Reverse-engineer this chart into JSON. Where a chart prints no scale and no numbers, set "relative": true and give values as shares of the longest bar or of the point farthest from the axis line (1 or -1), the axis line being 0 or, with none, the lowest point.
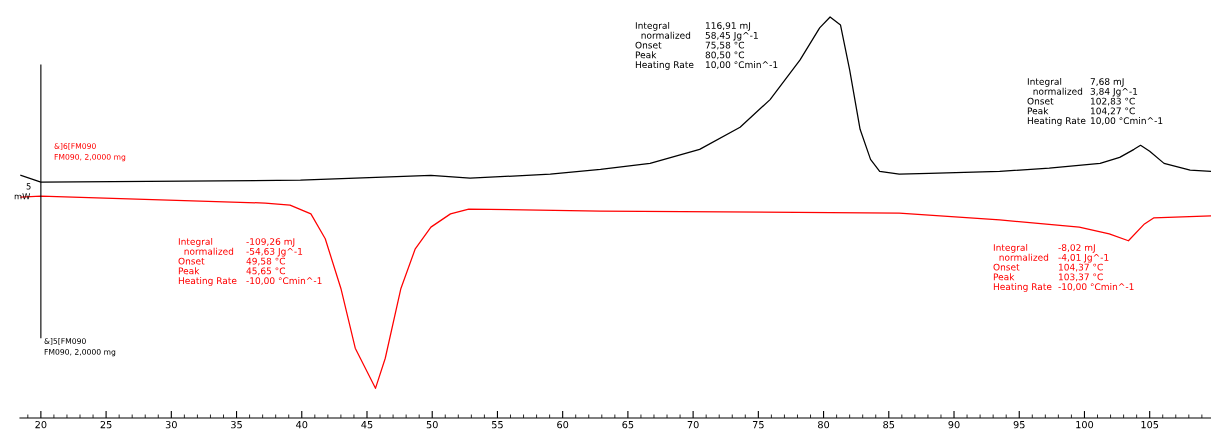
{
  "chart_data": {
    "type": "line",
    "relative": true,
    "xlim": [
      18.4,
      109.7
    ],
    "xticks": [
      20,
      25,
      30,
      35,
      40,
      45,
      50,
      55,
      60,
      65,
      70,
      75,
      80,
      85,
      90,
      95,
      100,
      105
    ],
    "grid": false,
    "legend": false,
    "marker": "none",
    "line_style": "solid",
    "series": [
      {
        "name": "&]5[FM090\nFM090, 2,0000 mg",
        "color": "#000000",
        "x": [
          18.47,
          20,
          39.9,
          49.9,
          52.9,
          59.05,
          62.9,
          66.7,
          70.5,
          73.6,
          75.9,
          78.2,
          79.7,
          80.5,
          81.3,
          82.0,
          82.8,
          83.6,
          84.3,
          85.8,
          88.1,
          93.5,
          97.3,
          101.2,
          102.7,
          103.8,
          104.3,
          105.0,
          106.1,
          108.1,
          109.7
        ],
        "values": [
          0.605,
          0.588,
          0.593,
          0.605,
          0.598,
          0.608,
          0.62,
          0.635,
          0.67,
          0.725,
          0.794,
          0.893,
          0.973,
          1.0,
          0.98,
          0.868,
          0.72,
          0.645,
          0.615,
          0.608,
          0.61,
          0.615,
          0.623,
          0.635,
          0.65,
          0.67,
          0.68,
          0.665,
          0.635,
          0.618,
          0.615
        ]
      },
      {
        "name": "&]6[FM090\nFM090, 2,0000 mg",
        "color": "#ff0000",
        "x": [
          18.47,
          20,
          37.2,
          39.1,
          40.7,
          41.8,
          43.0,
          44.1,
          45.65,
          46.4,
          47.6,
          48.7,
          49.9,
          51.4,
          52.8,
          62.9,
          85.8,
          93.5,
          99.6,
          101.9,
          103.37,
          104.6,
          105.3,
          109.7
        ],
        "values": [
          0.551,
          0.553,
          0.536,
          0.531,
          0.509,
          0.447,
          0.323,
          0.174,
          0.074,
          0.149,
          0.323,
          0.422,
          0.476,
          0.509,
          0.521,
          0.516,
          0.511,
          0.494,
          0.476,
          0.459,
          0.442,
          0.484,
          0.499,
          0.504
        ]
      }
    ],
    "annotations": [
      "5",
      "mW",
      "Integral\n  normalized\nOnset\nPeak\nHeating Rate",
      "116,91 mJ\n58,45 Jg^-1\n75,58 °C\n80,50 °C\n10,00 °Cmin^-1",
      "Integral\n  normalized\nOnset\nPeak\nHeating Rate",
      "7,68 mJ\n3,84 Jg^-1\n102,83 °C\n104,27 °C\n10,00 °Cmin^-1",
      "Integral\n  normalized\nOnset\nPeak\nHeating Rate",
      "-109,26 mJ\n-54,63 Jg^-1\n49,58 °C\n45,65 °C\n-10,00 °Cmin^-1",
      "Integral\n  normalized\nOnset\nPeak\nHeating Rate",
      "-8,02 mJ\n-4,01 Jg^-1\n104,37 °C\n103,37 °C\n-10,00 °Cmin^-1"
    ]
  }
}
